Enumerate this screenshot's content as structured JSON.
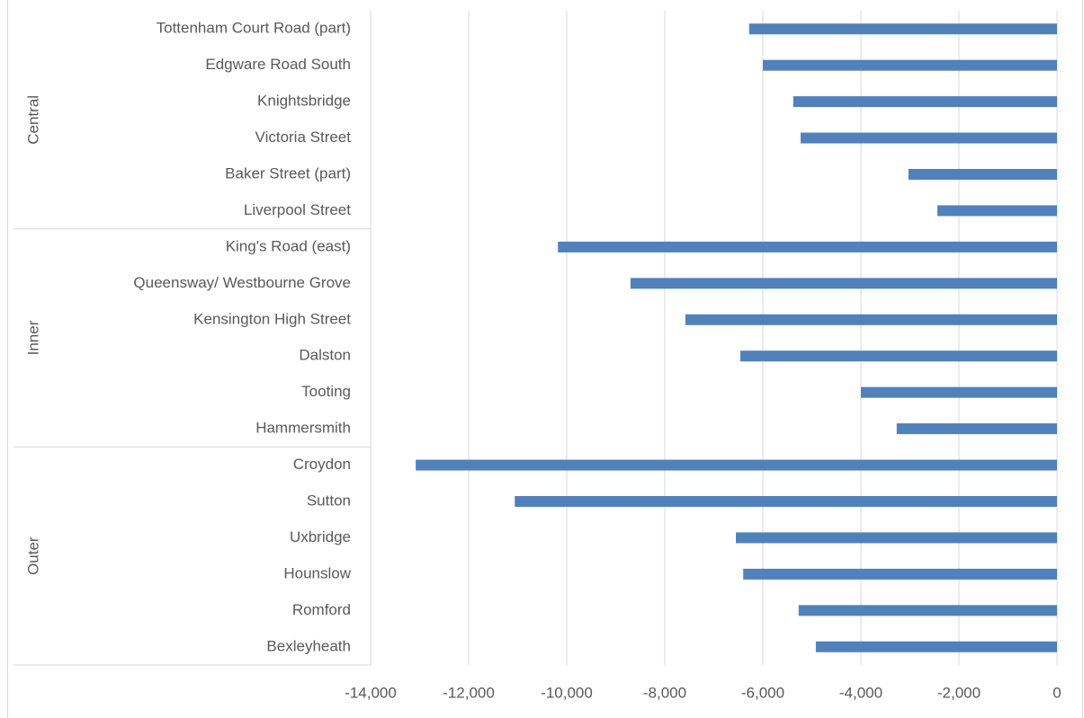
{
  "chart_data": {
    "type": "bar",
    "orientation": "horizontal",
    "color": "#4f81bd",
    "grid": true,
    "xlim": [
      -14000,
      0
    ],
    "xticks": [
      {
        "value": -14000,
        "label": "-14,000"
      },
      {
        "value": -12000,
        "label": "-12,000"
      },
      {
        "value": -10000,
        "label": "-10,000"
      },
      {
        "value": -8000,
        "label": "-8,000"
      },
      {
        "value": -6000,
        "label": "-6,000"
      },
      {
        "value": -4000,
        "label": "-4,000"
      },
      {
        "value": -2000,
        "label": "-2,000"
      },
      0
    ],
    "groups": [
      {
        "name": "Central",
        "categories": [
          "Tottenham Court Road (part)",
          "Edgware Road South",
          "Knightsbridge",
          "Victoria Street",
          "Baker Street (part)",
          "Liverpool Street"
        ],
        "values": [
          -6280,
          -6000,
          -5380,
          -5230,
          -3030,
          -2440
        ]
      },
      {
        "name": "Inner",
        "categories": [
          "King's Road (east)",
          "Queensway/ Westbourne Grove",
          "Kensington High Street ",
          "Dalston",
          "Tooting",
          "Hammersmith"
        ],
        "values": [
          -10180,
          -8700,
          -7580,
          -6460,
          -4000,
          -3270
        ]
      },
      {
        "name": "Outer",
        "categories": [
          "Croydon",
          "Sutton",
          "Uxbridge",
          "Hounslow",
          "Romford",
          "Bexleyheath"
        ],
        "values": [
          -13080,
          -11060,
          -6550,
          -6400,
          -5270,
          -4920
        ]
      }
    ]
  }
}
